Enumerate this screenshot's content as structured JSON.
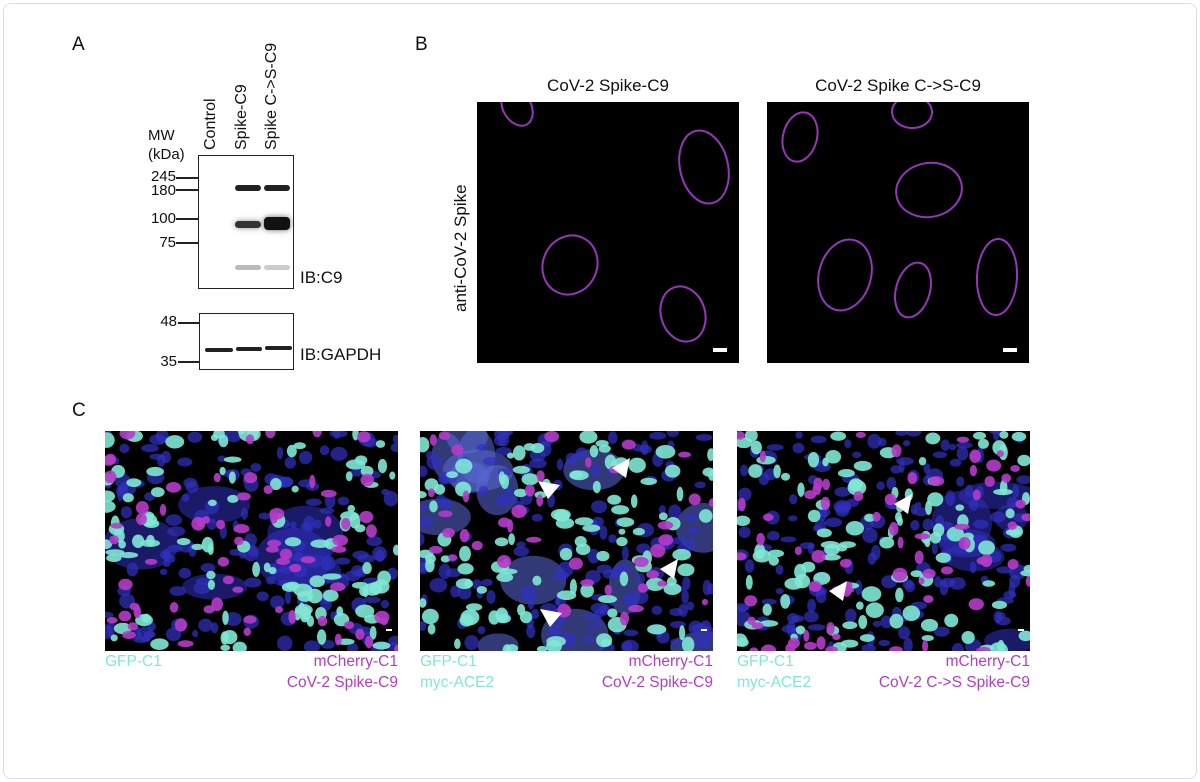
{
  "panel_a": {
    "label": "A",
    "lanes": [
      "Control",
      "Spike-C9",
      "Spike C->S-C9"
    ],
    "mw_header": [
      "MW",
      "(kDa)"
    ],
    "mw_markers_c9": [
      "245",
      "180",
      "100",
      "75"
    ],
    "mw_markers_gapdh": [
      "48",
      "35"
    ],
    "blot_c9_label": "IB:C9",
    "blot_gapdh_label": "IB:GAPDH"
  },
  "panel_b": {
    "label": "B",
    "row_label": "anti-CoV-2 Spike",
    "images": [
      {
        "title": "CoV-2 Spike-C9"
      },
      {
        "title": "CoV-2 Spike C->S-C9"
      }
    ],
    "stain_color": "#b040d8"
  },
  "panel_c": {
    "label": "C",
    "images": [
      {
        "left": [
          "GFP-C1"
        ],
        "right": [
          "mCherry-C1",
          "CoV-2 Spike-C9"
        ]
      },
      {
        "left": [
          "GFP-C1",
          "myc-ACE2"
        ],
        "right": [
          "mCherry-C1",
          "CoV-2 Spike-C9"
        ]
      },
      {
        "left": [
          "GFP-C1",
          "myc-ACE2"
        ],
        "right": [
          "mCherry-C1",
          "CoV-2 C->S Spike-C9"
        ]
      }
    ],
    "colors": {
      "gfp": "#7fe8d4",
      "mcherry": "#b43cc8",
      "nuclei": "#3030c0"
    },
    "arrowhead_icon": "white-triangle"
  }
}
